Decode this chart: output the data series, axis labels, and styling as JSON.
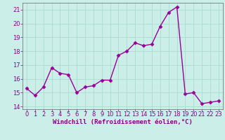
{
  "x": [
    0,
    1,
    2,
    3,
    4,
    5,
    6,
    7,
    8,
    9,
    10,
    11,
    12,
    13,
    14,
    15,
    16,
    17,
    18,
    19,
    20,
    21,
    22,
    23
  ],
  "y": [
    15.3,
    14.8,
    15.4,
    16.8,
    16.4,
    16.3,
    15.0,
    15.4,
    15.5,
    15.9,
    15.9,
    17.7,
    18.0,
    18.6,
    18.4,
    18.5,
    19.8,
    20.8,
    21.2,
    14.9,
    15.0,
    14.2,
    14.3,
    14.4
  ],
  "line_color": "#990099",
  "marker": "D",
  "marker_size": 2.5,
  "line_width": 1.0,
  "xlabel": "Windchill (Refroidissement éolien,°C)",
  "xlim": [
    -0.5,
    23.5
  ],
  "ylim": [
    13.8,
    21.5
  ],
  "yticks": [
    14,
    15,
    16,
    17,
    18,
    19,
    20,
    21
  ],
  "xticks": [
    0,
    1,
    2,
    3,
    4,
    5,
    6,
    7,
    8,
    9,
    10,
    11,
    12,
    13,
    14,
    15,
    16,
    17,
    18,
    19,
    20,
    21,
    22,
    23
  ],
  "bg_color": "#cceee8",
  "grid_color": "#aaddcc",
  "tick_color": "#880088",
  "label_color": "#880088",
  "xlabel_fontsize": 6.5,
  "tick_fontsize": 6.0
}
